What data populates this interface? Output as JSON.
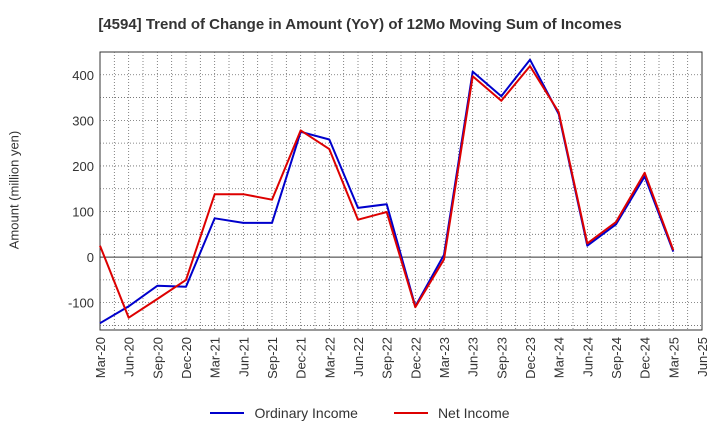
{
  "chart_data": {
    "type": "line",
    "title": "[4594]  Trend of Change in Amount (YoY) of 12Mo Moving Sum of Incomes",
    "ylabel": "Amount (million yen)",
    "xlabel": "",
    "ylim": [
      -160,
      450
    ],
    "yticks": [
      -100,
      0,
      100,
      200,
      300,
      400
    ],
    "grid": true,
    "legend_position": "bottom",
    "x": [
      "Mar-20",
      "Jun-20",
      "Sep-20",
      "Dec-20",
      "Mar-21",
      "Jun-21",
      "Sep-21",
      "Dec-21",
      "Mar-22",
      "Jun-22",
      "Sep-22",
      "Dec-22",
      "Mar-23",
      "Jun-23",
      "Sep-23",
      "Dec-23",
      "Mar-24",
      "Jun-24",
      "Sep-24",
      "Dec-24",
      "Mar-25",
      "Jun-25"
    ],
    "series": [
      {
        "name": "Ordinary Income",
        "color": "#0000cc",
        "values": [
          -145,
          -108,
          -63,
          -65,
          85,
          75,
          75,
          275,
          258,
          108,
          116,
          -108,
          5,
          407,
          353,
          433,
          314,
          25,
          72,
          177,
          12,
          null
        ]
      },
      {
        "name": "Net Income",
        "color": "#dd0000",
        "values": [
          25,
          -133,
          -92,
          -50,
          138,
          138,
          126,
          278,
          237,
          82,
          99,
          -110,
          -5,
          397,
          343,
          419,
          318,
          30,
          77,
          185,
          15,
          null
        ]
      }
    ]
  }
}
